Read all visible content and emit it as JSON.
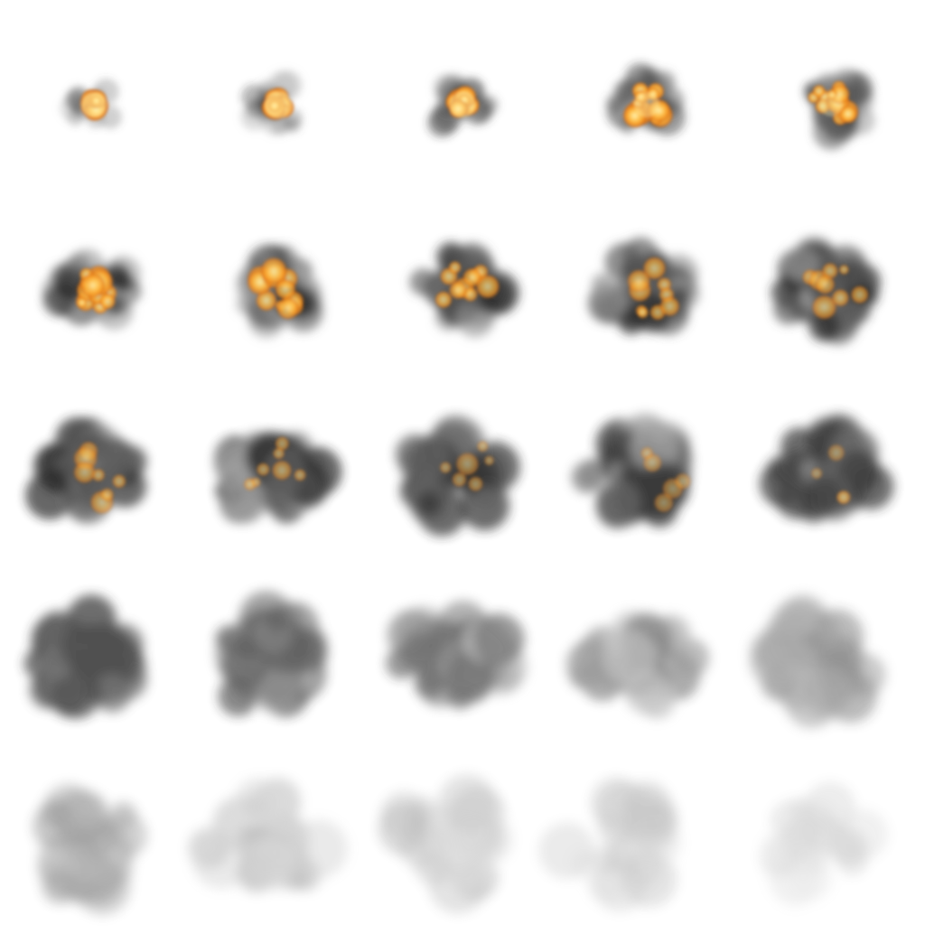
{
  "sprite_sheet": {
    "subject": "explosion",
    "grid": {
      "columns": 5,
      "rows": 5
    },
    "frame_count": 25,
    "background": "#ffffff",
    "colors": {
      "core": "#fff3b0",
      "fire": "#f08a1c",
      "ember": "#a23b0c",
      "smoke_dark": "#2b2b2b",
      "smoke_mid": "#5a5a5a",
      "smoke_light": "#9a9a9a"
    },
    "frames": [
      {
        "frame": 1,
        "fire": 1.0,
        "smoke": 0.05,
        "size": 0.4,
        "opacity": 1.0,
        "drift": 0.0
      },
      {
        "frame": 2,
        "fire": 0.95,
        "smoke": 0.15,
        "size": 0.46,
        "opacity": 1.0,
        "drift": 0.0
      },
      {
        "frame": 3,
        "fire": 0.85,
        "smoke": 0.3,
        "size": 0.5,
        "opacity": 1.0,
        "drift": 0.0
      },
      {
        "frame": 4,
        "fire": 0.75,
        "smoke": 0.42,
        "size": 0.54,
        "opacity": 1.0,
        "drift": 0.0
      },
      {
        "frame": 5,
        "fire": 0.65,
        "smoke": 0.52,
        "size": 0.58,
        "opacity": 1.0,
        "drift": 0.0
      },
      {
        "frame": 6,
        "fire": 0.6,
        "smoke": 0.6,
        "size": 0.62,
        "opacity": 1.0,
        "drift": 0.05
      },
      {
        "frame": 7,
        "fire": 0.52,
        "smoke": 0.66,
        "size": 0.64,
        "opacity": 1.0,
        "drift": 0.07
      },
      {
        "frame": 8,
        "fire": 0.44,
        "smoke": 0.72,
        "size": 0.66,
        "opacity": 1.0,
        "drift": 0.09
      },
      {
        "frame": 9,
        "fire": 0.36,
        "smoke": 0.78,
        "size": 0.68,
        "opacity": 1.0,
        "drift": 0.11
      },
      {
        "frame": 10,
        "fire": 0.3,
        "smoke": 0.82,
        "size": 0.7,
        "opacity": 1.0,
        "drift": 0.13
      },
      {
        "frame": 11,
        "fire": 0.24,
        "smoke": 0.86,
        "size": 0.72,
        "opacity": 0.98,
        "drift": 0.16
      },
      {
        "frame": 12,
        "fire": 0.18,
        "smoke": 0.88,
        "size": 0.74,
        "opacity": 0.96,
        "drift": 0.18
      },
      {
        "frame": 13,
        "fire": 0.12,
        "smoke": 0.9,
        "size": 0.76,
        "opacity": 0.94,
        "drift": 0.2
      },
      {
        "frame": 14,
        "fire": 0.07,
        "smoke": 0.92,
        "size": 0.78,
        "opacity": 0.92,
        "drift": 0.22
      },
      {
        "frame": 15,
        "fire": 0.03,
        "smoke": 0.94,
        "size": 0.8,
        "opacity": 0.9,
        "drift": 0.24
      },
      {
        "frame": 16,
        "fire": 0.0,
        "smoke": 0.92,
        "size": 0.82,
        "opacity": 0.82,
        "drift": 0.26
      },
      {
        "frame": 17,
        "fire": 0.0,
        "smoke": 0.88,
        "size": 0.83,
        "opacity": 0.74,
        "drift": 0.28
      },
      {
        "frame": 18,
        "fire": 0.0,
        "smoke": 0.82,
        "size": 0.84,
        "opacity": 0.66,
        "drift": 0.3
      },
      {
        "frame": 19,
        "fire": 0.0,
        "smoke": 0.76,
        "size": 0.85,
        "opacity": 0.58,
        "drift": 0.32
      },
      {
        "frame": 20,
        "fire": 0.0,
        "smoke": 0.7,
        "size": 0.86,
        "opacity": 0.5,
        "drift": 0.34
      },
      {
        "frame": 21,
        "fire": 0.0,
        "smoke": 0.62,
        "size": 0.87,
        "opacity": 0.44,
        "drift": 0.36
      },
      {
        "frame": 22,
        "fire": 0.0,
        "smoke": 0.55,
        "size": 0.88,
        "opacity": 0.38,
        "drift": 0.38
      },
      {
        "frame": 23,
        "fire": 0.0,
        "smoke": 0.48,
        "size": 0.88,
        "opacity": 0.32,
        "drift": 0.4
      },
      {
        "frame": 24,
        "fire": 0.0,
        "smoke": 0.4,
        "size": 0.89,
        "opacity": 0.26,
        "drift": 0.42
      },
      {
        "frame": 25,
        "fire": 0.0,
        "smoke": 0.32,
        "size": 0.9,
        "opacity": 0.2,
        "drift": 0.44
      }
    ]
  }
}
